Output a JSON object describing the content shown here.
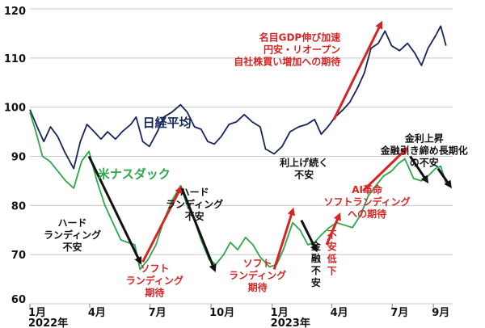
{
  "chart_data": {
    "type": "line",
    "title": "",
    "xlabel": "",
    "ylabel": "",
    "ylim": [
      60,
      120
    ],
    "yticks": [
      60,
      70,
      80,
      90,
      100,
      110,
      120
    ],
    "grid": true,
    "x_range": [
      "2022-01-01",
      "2023-09-30"
    ],
    "xticks": [
      {
        "date": "2022-01-01",
        "label": "1月"
      },
      {
        "date": "2022-04-01",
        "label": "4月"
      },
      {
        "date": "2022-07-01",
        "label": "7月"
      },
      {
        "date": "2022-10-01",
        "label": "10月"
      },
      {
        "date": "2023-01-01",
        "label": "1月"
      },
      {
        "date": "2023-04-01",
        "label": "4月"
      },
      {
        "date": "2023-07-01",
        "label": "7月"
      },
      {
        "date": "2023-09-01",
        "label": "9月"
      }
    ],
    "year_labels": [
      {
        "date": "2022-01-01",
        "label": "2022年"
      },
      {
        "date": "2023-01-01",
        "label": "2023年"
      }
    ],
    "series": [
      {
        "name": "日経平均",
        "color": "#14245c",
        "points": [
          [
            "2022-01-01",
            99.5
          ],
          [
            "2022-01-12",
            96.0
          ],
          [
            "2022-01-22",
            93.0
          ],
          [
            "2022-02-01",
            96.0
          ],
          [
            "2022-02-12",
            94.0
          ],
          [
            "2022-02-22",
            91.0
          ],
          [
            "2022-03-08",
            87.5
          ],
          [
            "2022-03-18",
            93.0
          ],
          [
            "2022-03-28",
            96.5
          ],
          [
            "2022-04-08",
            95.0
          ],
          [
            "2022-04-18",
            93.5
          ],
          [
            "2022-04-28",
            95.0
          ],
          [
            "2022-05-10",
            93.5
          ],
          [
            "2022-05-20",
            95.0
          ],
          [
            "2022-06-02",
            96.5
          ],
          [
            "2022-06-10",
            98.0
          ],
          [
            "2022-06-20",
            93.0
          ],
          [
            "2022-06-30",
            92.0
          ],
          [
            "2022-07-12",
            95.0
          ],
          [
            "2022-07-22",
            98.0
          ],
          [
            "2022-08-03",
            99.0
          ],
          [
            "2022-08-16",
            100.5
          ],
          [
            "2022-08-26",
            99.0
          ],
          [
            "2022-09-06",
            96.0
          ],
          [
            "2022-09-16",
            95.5
          ],
          [
            "2022-09-26",
            93.0
          ],
          [
            "2022-10-06",
            92.5
          ],
          [
            "2022-10-16",
            94.0
          ],
          [
            "2022-10-28",
            96.5
          ],
          [
            "2022-11-08",
            97.0
          ],
          [
            "2022-11-20",
            98.5
          ],
          [
            "2022-12-02",
            97.0
          ],
          [
            "2022-12-14",
            96.0
          ],
          [
            "2022-12-22",
            91.5
          ],
          [
            "2023-01-04",
            90.5
          ],
          [
            "2023-01-16",
            92.0
          ],
          [
            "2023-01-28",
            95.0
          ],
          [
            "2023-02-10",
            96.0
          ],
          [
            "2023-02-22",
            96.5
          ],
          [
            "2023-03-06",
            97.5
          ],
          [
            "2023-03-16",
            94.5
          ],
          [
            "2023-03-26",
            96.0
          ],
          [
            "2023-04-06",
            98.0
          ],
          [
            "2023-04-18",
            99.5
          ],
          [
            "2023-04-28",
            101.0
          ],
          [
            "2023-05-10",
            104.0
          ],
          [
            "2023-05-20",
            107.0
          ],
          [
            "2023-05-30",
            112.0
          ],
          [
            "2023-06-10",
            113.0
          ],
          [
            "2023-06-20",
            115.5
          ],
          [
            "2023-06-30",
            112.5
          ],
          [
            "2023-07-12",
            111.5
          ],
          [
            "2023-07-24",
            113.0
          ],
          [
            "2023-08-04",
            111.0
          ],
          [
            "2023-08-14",
            108.5
          ],
          [
            "2023-08-24",
            112.0
          ],
          [
            "2023-09-04",
            114.5
          ],
          [
            "2023-09-12",
            116.5
          ],
          [
            "2023-09-20",
            112.5
          ]
        ]
      },
      {
        "name": "米ナスダック",
        "color": "#2aa84a",
        "points": [
          [
            "2022-01-01",
            99.0
          ],
          [
            "2022-01-10",
            95.0
          ],
          [
            "2022-01-20",
            90.0
          ],
          [
            "2022-01-31",
            89.0
          ],
          [
            "2022-02-12",
            87.0
          ],
          [
            "2022-02-24",
            85.0
          ],
          [
            "2022-03-08",
            83.5
          ],
          [
            "2022-03-20",
            89.0
          ],
          [
            "2022-03-31",
            91.0
          ],
          [
            "2022-04-12",
            85.0
          ],
          [
            "2022-04-24",
            80.0
          ],
          [
            "2022-05-06",
            76.5
          ],
          [
            "2022-05-18",
            73.0
          ],
          [
            "2022-05-28",
            72.5
          ],
          [
            "2022-06-08",
            72.0
          ],
          [
            "2022-06-16",
            67.0
          ],
          [
            "2022-06-28",
            69.0
          ],
          [
            "2022-07-10",
            72.0
          ],
          [
            "2022-07-22",
            77.0
          ],
          [
            "2022-08-03",
            81.0
          ],
          [
            "2022-08-16",
            84.0
          ],
          [
            "2022-08-26",
            80.0
          ],
          [
            "2022-09-06",
            77.0
          ],
          [
            "2022-09-16",
            73.0
          ],
          [
            "2022-09-28",
            69.0
          ],
          [
            "2022-10-08",
            68.0
          ],
          [
            "2022-10-20",
            70.0
          ],
          [
            "2022-10-30",
            72.5
          ],
          [
            "2022-11-10",
            71.0
          ],
          [
            "2022-11-22",
            73.5
          ],
          [
            "2022-12-03",
            72.0
          ],
          [
            "2022-12-14",
            69.5
          ],
          [
            "2022-12-28",
            67.5
          ],
          [
            "2023-01-08",
            68.0
          ],
          [
            "2023-01-18",
            71.0
          ],
          [
            "2023-02-01",
            76.5
          ],
          [
            "2023-02-12",
            75.0
          ],
          [
            "2023-02-24",
            72.0
          ],
          [
            "2023-03-06",
            72.5
          ],
          [
            "2023-03-16",
            74.0
          ],
          [
            "2023-03-28",
            75.5
          ],
          [
            "2023-04-08",
            76.5
          ],
          [
            "2023-04-20",
            76.0
          ],
          [
            "2023-05-02",
            75.5
          ],
          [
            "2023-05-14",
            78.0
          ],
          [
            "2023-05-26",
            82.0
          ],
          [
            "2023-06-06",
            84.0
          ],
          [
            "2023-06-18",
            86.0
          ],
          [
            "2023-06-30",
            87.0
          ],
          [
            "2023-07-10",
            88.5
          ],
          [
            "2023-07-20",
            89.5
          ],
          [
            "2023-08-02",
            85.5
          ],
          [
            "2023-08-14",
            85.0
          ],
          [
            "2023-08-24",
            86.0
          ],
          [
            "2023-09-04",
            87.5
          ],
          [
            "2023-09-12",
            88.0
          ],
          [
            "2023-09-20",
            84.5
          ]
        ]
      }
    ],
    "series_labels": [
      {
        "text": "日経平均",
        "anchor": [
          "2022-06-20",
          96.0
        ],
        "color": "#14245c",
        "size": 15
      },
      {
        "text": "米ナスダック",
        "anchor": [
          "2022-04-13",
          85.6
        ],
        "color": "#2aa84a",
        "size": 15
      }
    ],
    "annotations": [
      {
        "lines": [
          "名目GDP伸び加速",
          "円安・リオープン",
          "自社株買い増加への期待"
        ],
        "color": "#d62424",
        "anchor": [
          "2023-04-14",
          113.5
        ],
        "align": "end",
        "size": 12
      },
      {
        "lines": [
          "金利上昇",
          "金融引き締め長期化",
          "の不安"
        ],
        "color": "#111111",
        "anchor": [
          "2023-08-18",
          93.0
        ],
        "align": "middle",
        "size": 12
      },
      {
        "lines": [
          "利上げ続く",
          "不安"
        ],
        "color": "#111111",
        "anchor": [
          "2023-02-18",
          88.0
        ],
        "align": "middle",
        "size": 12
      },
      {
        "lines": [
          "AI革命",
          "ソフトランディング",
          "への期待"
        ],
        "color": "#d62424",
        "anchor": [
          "2023-05-24",
          82.5
        ],
        "align": "middle",
        "size": 12
      },
      {
        "lines": [
          "ハード",
          "ランディング",
          "不安"
        ],
        "color": "#111111",
        "anchor": [
          "2022-03-06",
          75.8
        ],
        "align": "middle",
        "size": 12
      },
      {
        "lines": [
          "ハード",
          "ランディング",
          "不安"
        ],
        "color": "#111111",
        "anchor": [
          "2022-09-06",
          82.0
        ],
        "align": "middle",
        "size": 12
      },
      {
        "lines": [
          "ソフト",
          "ランディング",
          "期待"
        ],
        "color": "#d62424",
        "anchor": [
          "2022-07-08",
          66.5
        ],
        "align": "middle",
        "size": 12
      },
      {
        "lines": [
          "ソフト",
          "ランディング",
          "期待"
        ],
        "color": "#d62424",
        "anchor": [
          "2022-12-10",
          67.6
        ],
        "align": "middle",
        "size": 12
      },
      {
        "lines": [
          "金",
          "融",
          "不",
          "安"
        ],
        "color": "#111111",
        "anchor": [
          "2023-03-08",
          71.0
        ],
        "align": "middle",
        "size": 12
      },
      {
        "lines": [
          "不",
          "安",
          "低",
          "下"
        ],
        "color": "#d62424",
        "anchor": [
          "2023-04-01",
          73.4
        ],
        "align": "middle",
        "size": 12
      }
    ],
    "arrows": [
      {
        "from": [
          "2022-03-31",
          90.0
        ],
        "to": [
          "2022-06-16",
          68.5
        ],
        "color": "#111111"
      },
      {
        "from": [
          "2022-06-20",
          68.5
        ],
        "to": [
          "2022-08-16",
          83.5
        ],
        "color": "#d62424"
      },
      {
        "from": [
          "2022-08-18",
          83.5
        ],
        "to": [
          "2022-10-06",
          67.0
        ],
        "color": "#111111"
      },
      {
        "from": [
          "2023-01-04",
          67.0
        ],
        "to": [
          "2023-02-01",
          79.0
        ],
        "color": "#d62424"
      },
      {
        "from": [
          "2023-02-14",
          77.0
        ],
        "to": [
          "2023-03-08",
          71.0
        ],
        "color": "#111111"
      },
      {
        "from": [
          "2023-03-24",
          72.0
        ],
        "to": [
          "2023-04-12",
          78.0
        ],
        "color": "#d62424"
      },
      {
        "from": [
          "2023-04-04",
          97.5
        ],
        "to": [
          "2023-06-14",
          117.0
        ],
        "color": "#d62424"
      },
      {
        "from": [
          "2023-05-18",
          83.0
        ],
        "to": [
          "2023-07-22",
          91.5
        ],
        "color": "#d62424"
      },
      {
        "from": [
          "2023-07-28",
          90.0
        ],
        "to": [
          "2023-08-22",
          85.0
        ],
        "color": "#111111"
      },
      {
        "from": [
          "2023-09-08",
          87.5
        ],
        "to": [
          "2023-09-26",
          84.0
        ],
        "color": "#111111"
      }
    ]
  }
}
